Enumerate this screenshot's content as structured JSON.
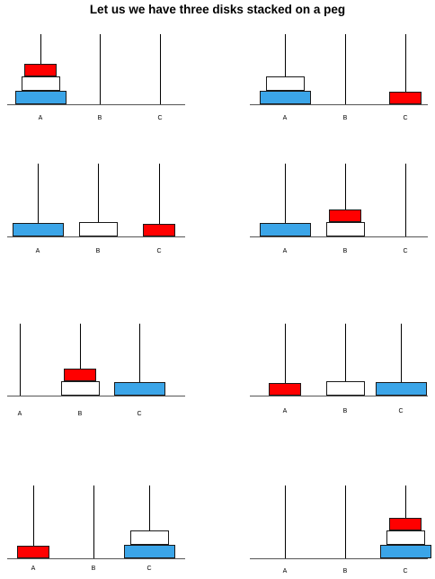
{
  "title": "Let us we have three disks stacked on a peg",
  "peg_labels": [
    "A",
    "B",
    "C"
  ],
  "disk_colors": {
    "small": "#ff0000",
    "medium": "#ffffff",
    "large": "#3ba5e8"
  },
  "steps": [
    {
      "A": [
        "large",
        "medium",
        "small"
      ],
      "B": [],
      "C": []
    },
    {
      "A": [
        "large",
        "medium"
      ],
      "B": [],
      "C": [
        "small"
      ]
    },
    {
      "A": [
        "large"
      ],
      "B": [
        "medium"
      ],
      "C": [
        "small"
      ]
    },
    {
      "A": [
        "large"
      ],
      "B": [
        "medium",
        "small"
      ],
      "C": []
    },
    {
      "A": [],
      "B": [
        "medium",
        "small"
      ],
      "C": [
        "large"
      ]
    },
    {
      "A": [
        "small"
      ],
      "B": [
        "medium"
      ],
      "C": [
        "large"
      ]
    },
    {
      "A": [
        "small"
      ],
      "B": [],
      "C": [
        "large",
        "medium"
      ]
    },
    {
      "A": [],
      "B": [],
      "C": [
        "large",
        "medium",
        "small"
      ]
    }
  ]
}
